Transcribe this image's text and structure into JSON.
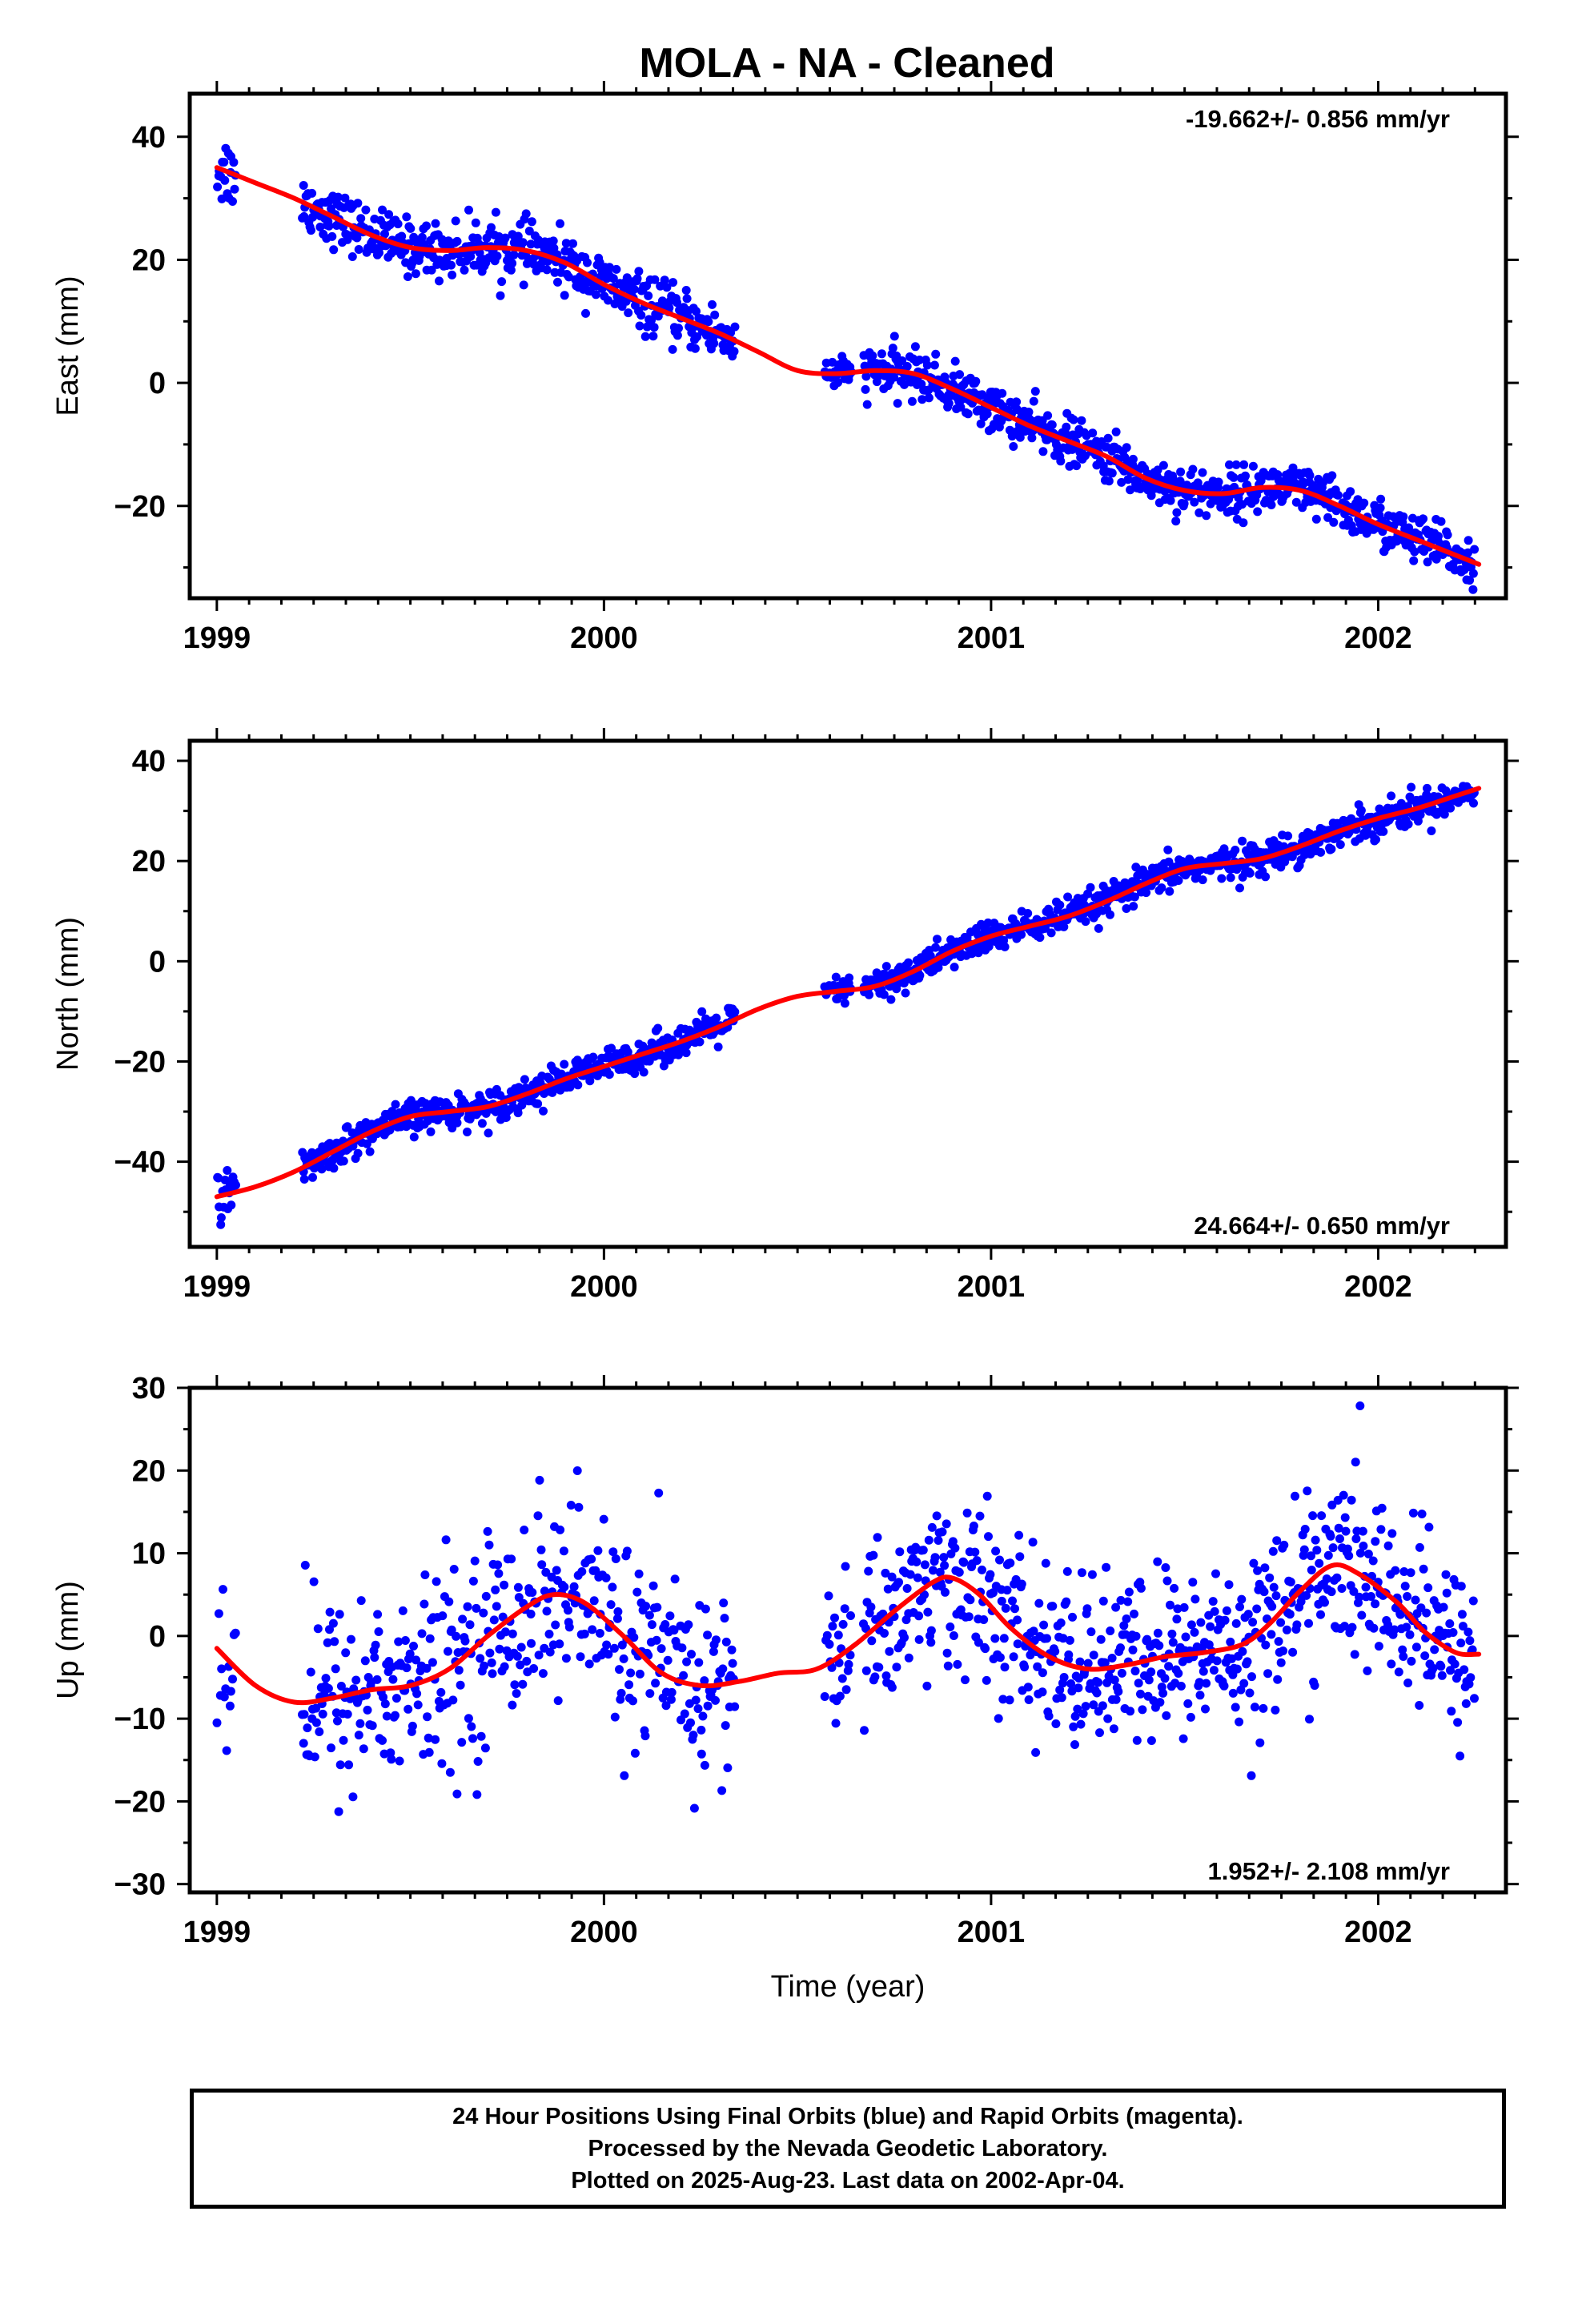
{
  "title": "MOLA  - NA - Cleaned",
  "colors": {
    "points": "#0000ff",
    "fit": "#ff0000",
    "axis": "#000000"
  },
  "chart_data": [
    {
      "type": "scatter",
      "ylabel": "East (mm)",
      "xlabel": "",
      "rate_text": "-19.662+/- 0.856 mm/yr",
      "rate_position": "top-right",
      "xlim": [
        1998.93,
        2002.33
      ],
      "ylim": [
        -35,
        47
      ],
      "x_ticks": [
        1999,
        2000,
        2001,
        2002
      ],
      "x_tick_labels": [
        "1999",
        "2000",
        "2001",
        "2002"
      ],
      "y_ticks": [
        -20,
        0,
        20,
        40
      ],
      "y_tick_labels": [
        "−20",
        "0",
        "20",
        "40"
      ],
      "y_minor_step": 10,
      "fit_knots": [
        [
          1999.0,
          35
        ],
        [
          1999.1,
          32.5
        ],
        [
          1999.2,
          30
        ],
        [
          1999.3,
          27
        ],
        [
          1999.4,
          24
        ],
        [
          1999.5,
          22
        ],
        [
          1999.6,
          21.5
        ],
        [
          1999.7,
          22
        ],
        [
          1999.8,
          21.5
        ],
        [
          1999.9,
          19.5
        ],
        [
          2000.0,
          16
        ],
        [
          2000.1,
          13
        ],
        [
          2000.2,
          10.5
        ],
        [
          2000.3,
          8
        ],
        [
          2000.4,
          5
        ],
        [
          2000.5,
          2
        ],
        [
          2000.6,
          1.5
        ],
        [
          2000.7,
          2
        ],
        [
          2000.8,
          1.5
        ],
        [
          2000.9,
          -1
        ],
        [
          2001.0,
          -4
        ],
        [
          2001.1,
          -7
        ],
        [
          2001.2,
          -9.5
        ],
        [
          2001.3,
          -12
        ],
        [
          2001.4,
          -15.5
        ],
        [
          2001.5,
          -17.5
        ],
        [
          2001.6,
          -18
        ],
        [
          2001.7,
          -17
        ],
        [
          2001.8,
          -17.5
        ],
        [
          2001.9,
          -20
        ],
        [
          2002.0,
          -23
        ],
        [
          2002.1,
          -25.5
        ],
        [
          2002.2,
          -28
        ],
        [
          2002.26,
          -29.5
        ]
      ],
      "scatter_segments": [
        {
          "from": 1999.0,
          "to": 1999.05,
          "n": 18,
          "sd": 3.0
        },
        {
          "from": 1999.22,
          "to": 2000.34,
          "n": 470,
          "sd": 2.2
        },
        {
          "from": 2000.57,
          "to": 2000.64,
          "n": 30,
          "sd": 1.3
        },
        {
          "from": 2000.67,
          "to": 2001.63,
          "n": 430,
          "sd": 1.9
        },
        {
          "from": 2001.63,
          "to": 2002.25,
          "n": 280,
          "sd": 2.0
        }
      ]
    },
    {
      "type": "scatter",
      "ylabel": "North (mm)",
      "xlabel": "",
      "rate_text": "24.664+/- 0.650 mm/yr",
      "rate_position": "bottom-right",
      "xlim": [
        1998.93,
        2002.33
      ],
      "ylim": [
        -57,
        44
      ],
      "x_ticks": [
        1999,
        2000,
        2001,
        2002
      ],
      "x_tick_labels": [
        "1999",
        "2000",
        "2001",
        "2002"
      ],
      "y_ticks": [
        -40,
        -20,
        0,
        20,
        40
      ],
      "y_tick_labels": [
        "−40",
        "−20",
        "0",
        "20",
        "40"
      ],
      "y_minor_step": 10,
      "fit_knots": [
        [
          1999.0,
          -47
        ],
        [
          1999.1,
          -45
        ],
        [
          1999.2,
          -42
        ],
        [
          1999.3,
          -38
        ],
        [
          1999.4,
          -34
        ],
        [
          1999.5,
          -31
        ],
        [
          1999.6,
          -30
        ],
        [
          1999.7,
          -29
        ],
        [
          1999.8,
          -26.5
        ],
        [
          1999.9,
          -23.5
        ],
        [
          2000.0,
          -21
        ],
        [
          2000.1,
          -18.5
        ],
        [
          2000.2,
          -16
        ],
        [
          2000.3,
          -13
        ],
        [
          2000.4,
          -9.5
        ],
        [
          2000.5,
          -7
        ],
        [
          2000.6,
          -6
        ],
        [
          2000.7,
          -5
        ],
        [
          2000.8,
          -2
        ],
        [
          2000.9,
          2
        ],
        [
          2001.0,
          5
        ],
        [
          2001.1,
          7
        ],
        [
          2001.2,
          9
        ],
        [
          2001.3,
          12
        ],
        [
          2001.4,
          15.5
        ],
        [
          2001.5,
          18.5
        ],
        [
          2001.6,
          19.5
        ],
        [
          2001.7,
          20.5
        ],
        [
          2001.8,
          23
        ],
        [
          2001.9,
          26
        ],
        [
          2002.0,
          28.5
        ],
        [
          2002.1,
          30.5
        ],
        [
          2002.2,
          33
        ],
        [
          2002.26,
          34.5
        ]
      ],
      "scatter_segments": [
        {
          "from": 1999.0,
          "to": 1999.05,
          "n": 18,
          "sd": 2.2
        },
        {
          "from": 1999.22,
          "to": 2000.34,
          "n": 470,
          "sd": 1.6
        },
        {
          "from": 2000.57,
          "to": 2000.64,
          "n": 30,
          "sd": 1.3
        },
        {
          "from": 2000.67,
          "to": 2001.63,
          "n": 430,
          "sd": 1.6
        },
        {
          "from": 2001.63,
          "to": 2002.25,
          "n": 280,
          "sd": 1.6
        }
      ]
    },
    {
      "type": "scatter",
      "ylabel": "Up (mm)",
      "xlabel": "Time (year)",
      "rate_text": "1.952+/- 2.108 mm/yr",
      "rate_position": "bottom-right",
      "xlim": [
        1998.93,
        2002.33
      ],
      "ylim": [
        -31,
        30
      ],
      "x_ticks": [
        1999,
        2000,
        2001,
        2002
      ],
      "x_tick_labels": [
        "1999",
        "2000",
        "2001",
        "2002"
      ],
      "y_ticks": [
        -30,
        -20,
        -10,
        0,
        10,
        20,
        30
      ],
      "y_tick_labels": [
        "−30",
        "−20",
        "−10",
        "0",
        "10",
        "20",
        "30"
      ],
      "y_minor_step": 5,
      "fit_knots": [
        [
          1999.0,
          -1.5
        ],
        [
          1999.1,
          -6
        ],
        [
          1999.2,
          -8
        ],
        [
          1999.3,
          -7.5
        ],
        [
          1999.4,
          -6.5
        ],
        [
          1999.5,
          -6
        ],
        [
          1999.6,
          -4
        ],
        [
          1999.7,
          0
        ],
        [
          1999.8,
          3.5
        ],
        [
          1999.87,
          5
        ],
        [
          1999.95,
          4
        ],
        [
          2000.05,
          0
        ],
        [
          2000.15,
          -4.5
        ],
        [
          2000.25,
          -6
        ],
        [
          2000.35,
          -5.5
        ],
        [
          2000.45,
          -4.5
        ],
        [
          2000.55,
          -4
        ],
        [
          2000.65,
          -1
        ],
        [
          2000.75,
          3
        ],
        [
          2000.85,
          6.5
        ],
        [
          2000.9,
          7
        ],
        [
          2000.97,
          5
        ],
        [
          2001.05,
          1
        ],
        [
          2001.15,
          -2.5
        ],
        [
          2001.25,
          -4
        ],
        [
          2001.35,
          -3.5
        ],
        [
          2001.45,
          -2.5
        ],
        [
          2001.55,
          -2
        ],
        [
          2001.65,
          -1
        ],
        [
          2001.72,
          1.5
        ],
        [
          2001.8,
          5.5
        ],
        [
          2001.88,
          8.5
        ],
        [
          2001.95,
          7.5
        ],
        [
          2002.05,
          4
        ],
        [
          2002.12,
          0.5
        ],
        [
          2002.2,
          -2
        ],
        [
          2002.26,
          -2.2
        ]
      ],
      "scatter_segments": [
        {
          "from": 1999.0,
          "to": 1999.05,
          "n": 14,
          "sd": 6.0
        },
        {
          "from": 1999.22,
          "to": 2000.34,
          "n": 420,
          "sd": 6.0
        },
        {
          "from": 2000.57,
          "to": 2000.64,
          "n": 25,
          "sd": 4.5
        },
        {
          "from": 2000.67,
          "to": 2001.63,
          "n": 400,
          "sd": 5.2
        },
        {
          "from": 2001.63,
          "to": 2002.25,
          "n": 260,
          "sd": 5.4
        }
      ]
    }
  ],
  "caption": {
    "line1": "24 Hour Positions Using Final Orbits (blue) and Rapid Orbits (magenta).",
    "line2": "Processed by the Nevada Geodetic Laboratory.",
    "line3": "Plotted on 2025-Aug-23. Last data on 2002-Apr-04."
  }
}
